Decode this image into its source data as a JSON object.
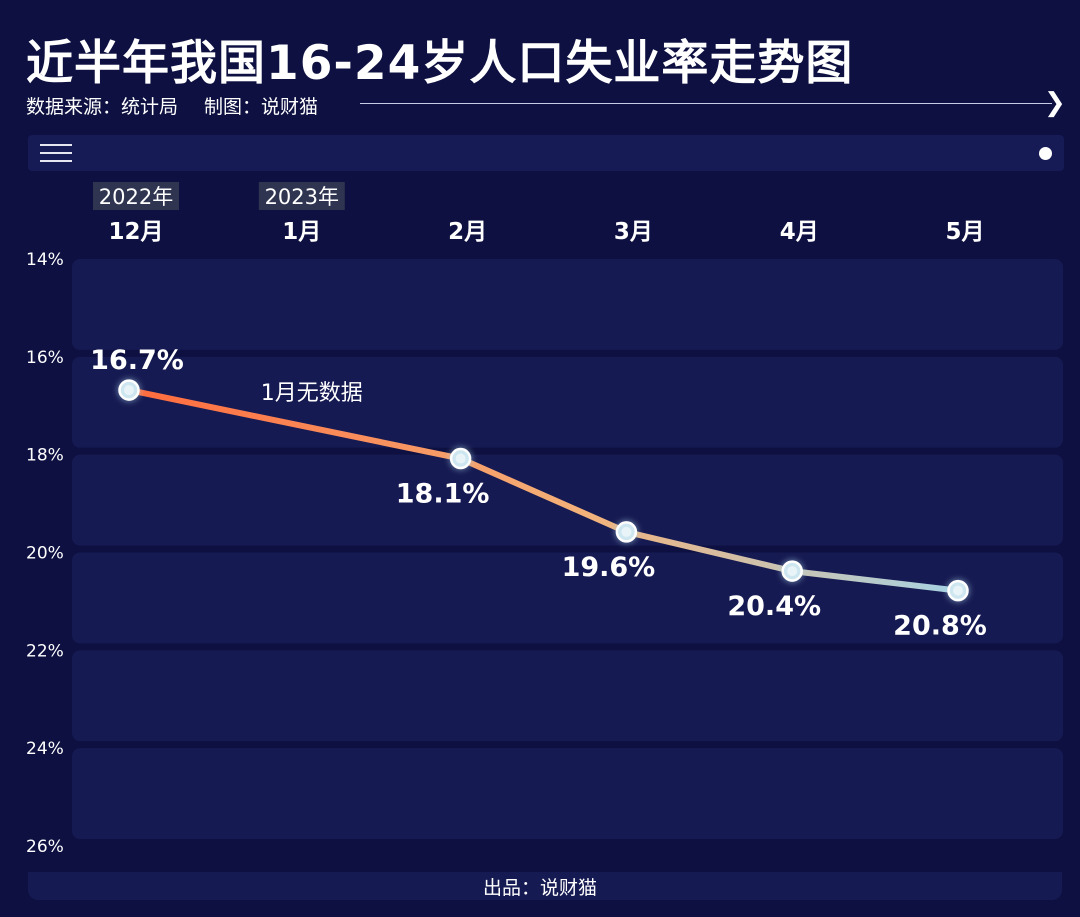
{
  "title": "近半年我国16-24岁人口失业率走势图",
  "source": {
    "data_source": "数据来源：统计局",
    "made_by": "制图：说财猫"
  },
  "footer": "出品：说财猫",
  "colors": {
    "background": "#0d1040",
    "band": "#161a52",
    "line_start": "#ff6a3d",
    "line_mid": "#f3b27a",
    "line_end": "#a6d2e3"
  },
  "chart_data": {
    "type": "line",
    "categories": [
      "12月",
      "1月",
      "2月",
      "3月",
      "4月",
      "5月"
    ],
    "year_labels": [
      {
        "category": "12月",
        "label": "2022年"
      },
      {
        "category": "1月",
        "label": "2023年"
      }
    ],
    "series": [
      {
        "values": [
          16.7,
          null,
          18.1,
          19.6,
          20.4,
          20.8
        ]
      }
    ],
    "data_labels": [
      "16.7%",
      "",
      "18.1%",
      "19.6%",
      "20.4%",
      "20.8%"
    ],
    "annotation": {
      "category": "1月",
      "text": "1月无数据"
    },
    "y_axis": {
      "reversed": true,
      "ylim": [
        14,
        26
      ],
      "ticks": [
        14,
        16,
        18,
        20,
        22,
        24,
        26
      ],
      "tick_labels": [
        "14%",
        "16%",
        "18%",
        "20%",
        "22%",
        "24%",
        "26%"
      ]
    },
    "grid": "banded",
    "title": "近半年我国16-24岁人口失业率走势图"
  }
}
